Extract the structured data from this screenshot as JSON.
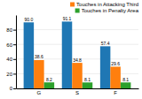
{
  "chart_data": {
    "type": "bar",
    "categories": [
      "G",
      "S",
      "F"
    ],
    "series": [
      {
        "color": "#1f77b4",
        "values": [
          90.0,
          91.1,
          57.4
        ],
        "value_labels": [
          "90.0",
          "91.1",
          "57.4"
        ]
      },
      {
        "name": "Touches in Attacking Third",
        "color": "#ff7f0e",
        "values": [
          38.6,
          34.8,
          29.6
        ]
      },
      {
        "name": "Touches in Penalty Area",
        "color": "#2ca02c",
        "values": [
          8.2,
          8.1,
          8.1
        ]
      }
    ],
    "ylim": [
      0,
      100
    ],
    "yticks": [
      0,
      20,
      40,
      60,
      80
    ],
    "grid": true,
    "legend": "upper right",
    "data_labels": true
  }
}
